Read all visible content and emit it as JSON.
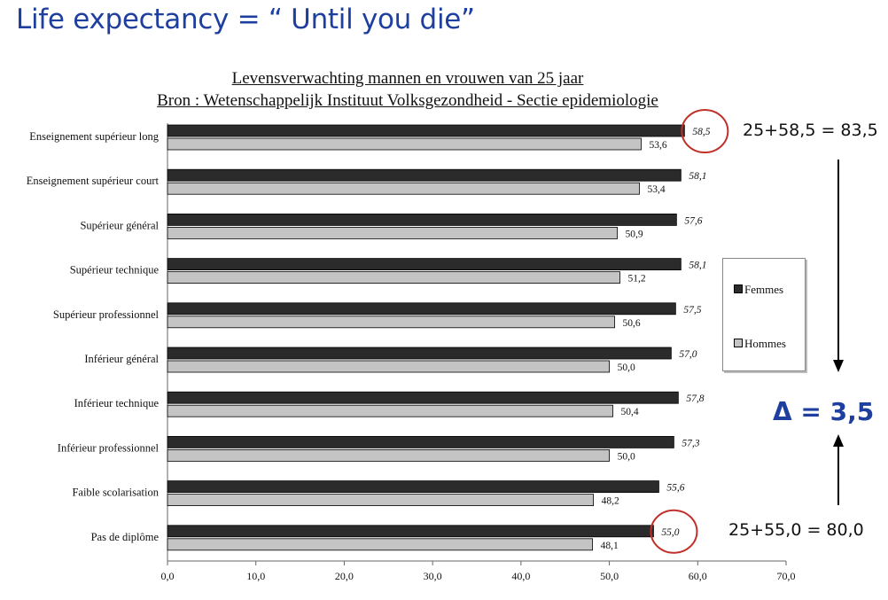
{
  "slide": {
    "title": "Life expectancy = “ Until you die”"
  },
  "chart_data": {
    "type": "bar",
    "orientation": "horizontal",
    "title": "Levensverwachting mannen en vrouwen van 25 jaar",
    "subtitle": "Bron : Wetenschappelijk Instituut Volksgezondheid - Sectie epidemiologie",
    "categories": [
      "Enseignement supérieur long",
      "Enseignement supérieur court",
      "Supérieur général",
      "Supérieur technique",
      "Supérieur professionnel",
      "Inférieur général",
      "Inférieur technique",
      "Inférieur professionnel",
      "Faible scolarisation",
      "Pas de diplôme"
    ],
    "series": [
      {
        "name": "Femmes",
        "color": "#2b2b2b",
        "values": [
          58.5,
          58.1,
          57.6,
          58.1,
          57.5,
          57.0,
          57.8,
          57.3,
          55.6,
          55.0
        ],
        "labels": [
          "58,5",
          "58,1",
          "57,6",
          "58,1",
          "57,5",
          "57,0",
          "57,8",
          "57,3",
          "55,6",
          "55,0"
        ]
      },
      {
        "name": "Hommes",
        "color": "#c4c4c4",
        "values": [
          53.6,
          53.4,
          50.9,
          51.2,
          50.6,
          50.0,
          50.4,
          50.0,
          48.2,
          48.1
        ],
        "labels": [
          "53,6",
          "53,4",
          "50,9",
          "51,2",
          "50,6",
          "50,0",
          "50,4",
          "50,0",
          "48,2",
          "48,1"
        ]
      }
    ],
    "xlim": [
      0,
      70
    ],
    "xticks": [
      "0,0",
      "10,0",
      "20,0",
      "30,0",
      "40,0",
      "50,0",
      "60,0",
      "70,0"
    ],
    "legend_position": "right",
    "grid": false,
    "highlighted": [
      {
        "series": 0,
        "category": 0
      },
      {
        "series": 0,
        "category": 9
      }
    ]
  },
  "annotations": {
    "top_sum": "25+58,5 = 83,5",
    "bottom_sum": "25+55,0 = 80,0",
    "delta": "Δ = 3,5",
    "highlight_color": "#c0302a",
    "arrow_color": "#000000"
  }
}
